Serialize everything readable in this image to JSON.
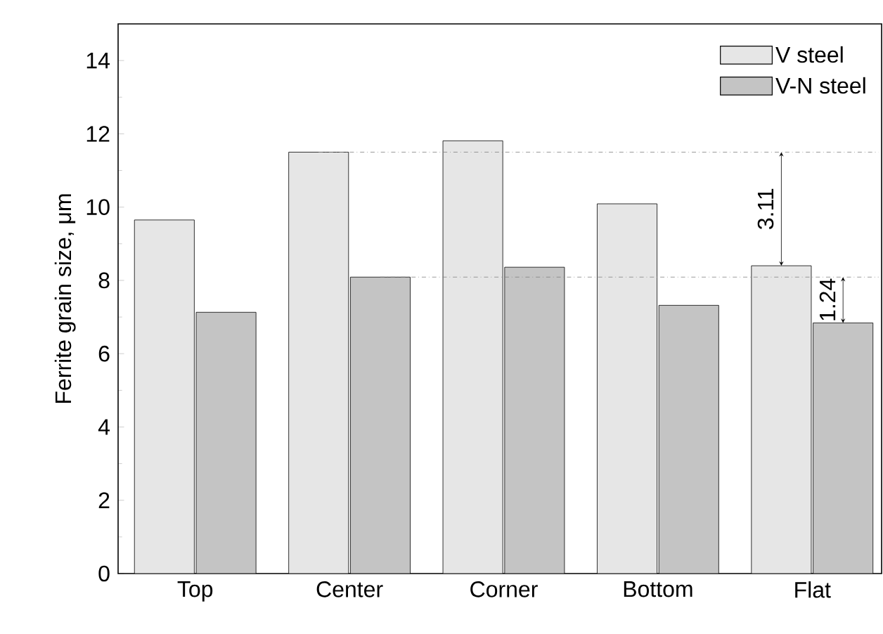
{
  "chart_data": {
    "type": "bar",
    "ylabel": "Ferrite grain size, μm",
    "categories": [
      "Top",
      "Center",
      "Corner",
      "Bottom",
      "Flat"
    ],
    "series": [
      {
        "name": "V steel",
        "color": "#e6e6e6",
        "values": [
          9.65,
          11.5,
          11.81,
          10.09,
          8.4
        ]
      },
      {
        "name": "V-N steel",
        "color": "#c4c4c4",
        "values": [
          7.13,
          8.09,
          8.36,
          7.32,
          6.84
        ]
      }
    ],
    "ylim": [
      0,
      15
    ],
    "yticks": [
      0,
      2,
      4,
      6,
      8,
      10,
      12,
      14
    ],
    "legend": "top right",
    "ref_lines": [
      {
        "axis": "y",
        "value": 11.5,
        "line_style": "dashed"
      },
      {
        "axis": "y",
        "value": 8.09,
        "line_style": "dashed"
      }
    ],
    "annotations": [
      "3.11",
      "1.24"
    ]
  }
}
